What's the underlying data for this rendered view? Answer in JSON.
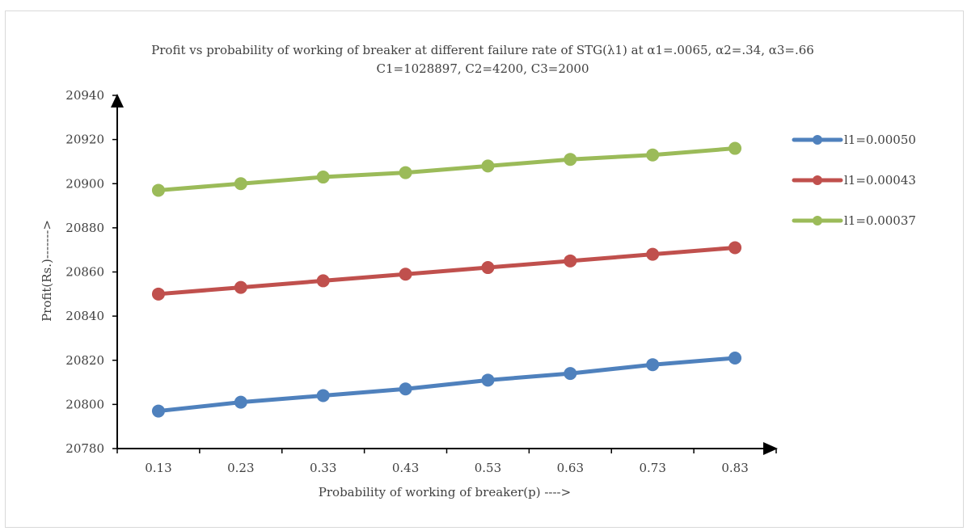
{
  "chart_data": {
    "type": "line",
    "title": "Profit vs probability of working of breaker at different failure rate of STG(λ1) at α1=.0065, α2=.34, α3=.66",
    "subtitle": "C1=1028897, C2=4200, C3=2000",
    "xlabel": "Probability of working of breaker(p) ---->",
    "ylabel": "Profit(Rs.)------->",
    "categories": [
      "0.13",
      "0.23",
      "0.33",
      "0.43",
      "0.53",
      "0.63",
      "0.73",
      "0.83"
    ],
    "yticks": [
      "20780",
      "20800",
      "20820",
      "20840",
      "20860",
      "20880",
      "20900",
      "20920",
      "20940"
    ],
    "ylim": [
      20780,
      20940
    ],
    "grid": false,
    "legend_position": "right",
    "series": [
      {
        "name": "l1=0.00050",
        "color": "#4f81bd",
        "values": [
          20797,
          20801,
          20804,
          20807,
          20811,
          20814,
          20818,
          20821
        ]
      },
      {
        "name": "l1=0.00043",
        "color": "#c0504d",
        "values": [
          20850,
          20853,
          20856,
          20859,
          20862,
          20865,
          20868,
          20871
        ]
      },
      {
        "name": "l1=0.00037",
        "color": "#9bbb59",
        "values": [
          20897,
          20900,
          20903,
          20905,
          20908,
          20911,
          20913,
          20916
        ]
      }
    ]
  }
}
